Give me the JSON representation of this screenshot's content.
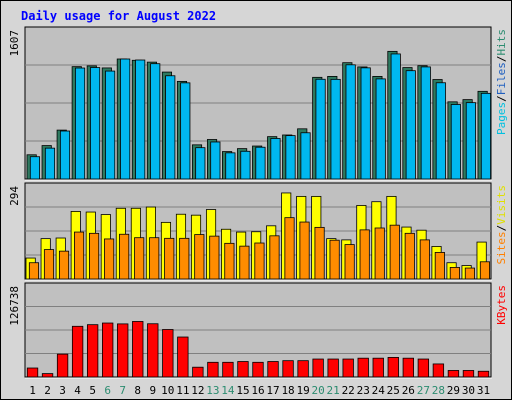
{
  "chart_data": {
    "type": "bar",
    "title": "Daily usage for August 2022",
    "categories": [
      "1",
      "2",
      "3",
      "4",
      "5",
      "6",
      "7",
      "8",
      "9",
      "10",
      "11",
      "12",
      "13",
      "14",
      "15",
      "16",
      "17",
      "18",
      "19",
      "20",
      "21",
      "22",
      "23",
      "24",
      "25",
      "26",
      "27",
      "28",
      "29",
      "30",
      "31"
    ],
    "weekend_categories": [
      "6",
      "7",
      "13",
      "14",
      "20",
      "21",
      "27",
      "28"
    ],
    "panels": [
      {
        "name": "hits-files-pages",
        "ymax_label": "1607",
        "ylim": [
          0,
          1607
        ],
        "legend": [
          "Pages",
          "/",
          "Files",
          "/",
          "Hits"
        ],
        "legend_colors": [
          "#00c0e0",
          "#000000",
          "#2060c0",
          "#000000",
          "#2c8c70"
        ],
        "series": [
          {
            "name": "Hits",
            "color": "#2e7a60",
            "values": [
              263,
              363,
              531,
              1220,
              1228,
              1206,
              1303,
              1289,
              1269,
              1161,
              1060,
              371,
              429,
              298,
              330,
              358,
              460,
              478,
              545,
              1104,
              1114,
              1263,
              1217,
              1114,
              1386,
              1210,
              1230,
              1080,
              838,
              862,
              952
            ]
          },
          {
            "name": "Files",
            "color": "#00b8f0",
            "values": [
              242,
              335,
              521,
              1205,
              1210,
              1172,
              1303,
              1292,
              1252,
              1121,
              1044,
              340,
              402,
              284,
              301,
              345,
              440,
              471,
              502,
              1083,
              1082,
              1240,
              1207,
              1087,
              1358,
              1176,
              1217,
              1045,
              809,
              829,
              930
            ]
          },
          {
            "name": "Pages",
            "color": "#00e0ff",
            "values": [
              242,
              335,
              521,
              1205,
              1210,
              1172,
              1303,
              1292,
              1252,
              1121,
              1044,
              340,
              402,
              284,
              301,
              345,
              440,
              471,
              502,
              1083,
              1082,
              1240,
              1207,
              1087,
              1358,
              1176,
              1217,
              1045,
              809,
              829,
              930
            ]
          }
        ]
      },
      {
        "name": "visits-sites",
        "ymax_label": "294",
        "ylim": [
          0,
          294
        ],
        "legend": [
          "Sites",
          "/",
          "Visits"
        ],
        "legend_colors": [
          "#ff8000",
          "#000000",
          "#e0e000"
        ],
        "series": [
          {
            "name": "Visits",
            "color": "#ffff00",
            "values": [
              67,
              129,
              131,
              216,
              214,
              206,
              226,
              226,
              230,
              181,
              207,
              204,
              222,
              159,
              150,
              151,
              170,
              275,
              264,
              264,
              129,
              125,
              235,
              247,
              264,
              166,
              156,
              104,
              52,
              43,
              118
            ]
          },
          {
            "name": "Sites",
            "color": "#ff8c00",
            "values": [
              52,
              94,
              89,
              150,
              146,
              128,
              143,
              132,
              132,
              130,
              130,
              142,
              137,
              114,
              105,
              115,
              138,
              196,
              182,
              165,
              124,
              110,
              157,
              163,
              172,
              146,
              125,
              85,
              37,
              35,
              55
            ]
          }
        ]
      },
      {
        "name": "kbytes",
        "ymax_label": "126738",
        "ylim": [
          0,
          126738
        ],
        "legend": [
          "KBytes"
        ],
        "legend_colors": [
          "#ff0000"
        ],
        "series": [
          {
            "name": "KBytes",
            "color": "#ff0000",
            "values": [
              12650,
              4800,
              32200,
              71400,
              73700,
              76000,
              74800,
              78200,
              75000,
              66900,
              56300,
              13800,
              20700,
              20700,
              21800,
              20700,
              21800,
              23000,
              23000,
              25300,
              25300,
              25300,
              26500,
              26500,
              27600,
              26500,
              25300,
              18400,
              9200,
              9200,
              8100
            ]
          }
        ]
      }
    ]
  }
}
